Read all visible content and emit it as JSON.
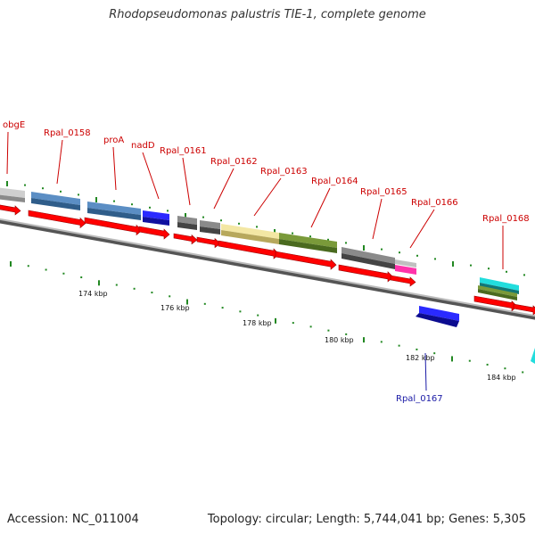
{
  "header": {
    "title": "Rhodopseudomonas palustris TIE-1, complete genome"
  },
  "footer": {
    "accession": "Accession: NC_011004",
    "topology": "Topology: circular; Length: 5,744,041 bp; Genes: 5,305"
  },
  "scale_labels": [
    "174 kbp",
    "176 kbp",
    "178 kbp",
    "180 kbp",
    "182 kbp",
    "184 kbp"
  ],
  "gene_labels": [
    "obgE",
    "Rpal_0158",
    "proA",
    "nadD",
    "Rpal_0161",
    "Rpal_0162",
    "Rpal_0163",
    "Rpal_0164",
    "Rpal_0165",
    "Rpal_0166",
    "Rpal_0168",
    "Rpal_0167"
  ],
  "colors": {
    "cds": "#ff0000",
    "backbone": "#888888",
    "tick": "#228822",
    "label_forward": "#cc0000",
    "label_reverse": "#1a1aa6"
  }
}
